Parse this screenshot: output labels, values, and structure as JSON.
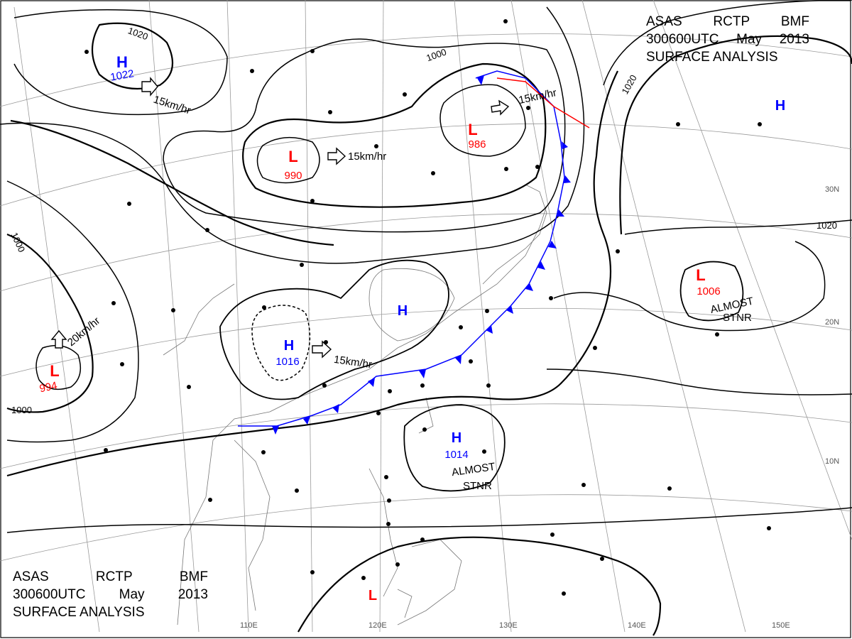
{
  "header": {
    "line1": [
      "ASAS",
      "RCTP",
      "BMF"
    ],
    "line2": [
      "300600UTC",
      "May",
      "2013"
    ],
    "line3": "SURFACE ANALYSIS"
  },
  "colors": {
    "isobar": "#000000",
    "high": "#0000ff",
    "low": "#ff0000",
    "grid": "#999999",
    "coast": "#777777"
  },
  "pressure_systems": [
    {
      "type": "H",
      "value": "1022"
    },
    {
      "type": "L",
      "value": "990"
    },
    {
      "type": "L",
      "value": "986"
    },
    {
      "type": "H",
      "value": ""
    },
    {
      "type": "H",
      "value": "1016"
    },
    {
      "type": "L",
      "value": "994"
    },
    {
      "type": "H",
      "value": "1014"
    },
    {
      "type": "L",
      "value": "1006"
    },
    {
      "type": "H",
      "value": ""
    },
    {
      "type": "L",
      "value": ""
    }
  ],
  "isobar_labels": [
    "1020",
    "1000",
    "1020",
    "1020",
    "1000",
    "1000"
  ],
  "motion_labels": [
    "15km/hr",
    "15km/hr",
    "15km/hr",
    "15km/hr",
    "20km/hr"
  ],
  "status_labels": [
    {
      "line1": "ALMOST",
      "line2": "STNR"
    },
    {
      "line1": "ALMOST",
      "line2": "STNR"
    }
  ],
  "longitude_labels": [
    "110E",
    "120E",
    "130E",
    "140E",
    "150E"
  ],
  "latitude_labels": [
    "30N",
    "20N",
    "10N"
  ]
}
